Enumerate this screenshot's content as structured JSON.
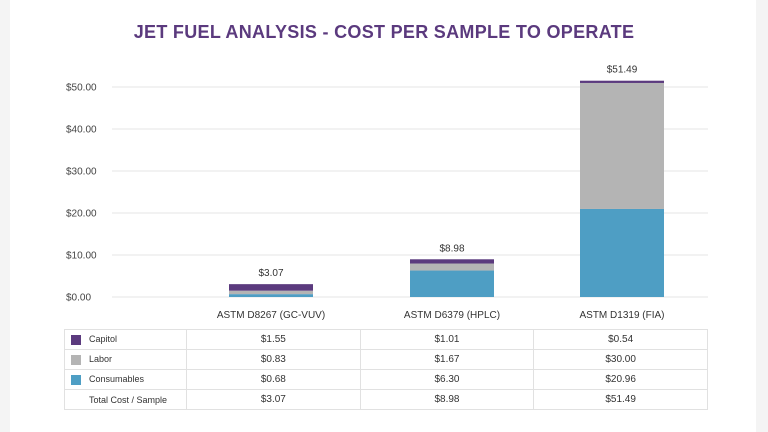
{
  "chart_data": {
    "type": "bar",
    "stacked": true,
    "title": "JET FUEL ANALYSIS - COST PER SAMPLE TO OPERATE",
    "categories": [
      "ASTM D8267 (GC-VUV)",
      "ASTM D6379 (HPLC)",
      "ASTM D1319 (FIA)"
    ],
    "series": [
      {
        "name": "Consumables",
        "values": [
          0.68,
          6.3,
          20.96
        ],
        "color": "#4e9ec4",
        "labels": [
          "$0.68",
          "$6.30",
          "$20.96"
        ]
      },
      {
        "name": "Labor",
        "values": [
          0.83,
          1.67,
          30.0
        ],
        "color": "#b4b4b4",
        "labels": [
          "$0.83",
          "$1.67",
          "$30.00"
        ]
      },
      {
        "name": "Capitol",
        "values": [
          1.55,
          1.01,
          0.54
        ],
        "color": "#5b3a7e",
        "labels": [
          "$1.55",
          "$1.01",
          "$0.54"
        ]
      }
    ],
    "totals": {
      "name": "Total Cost / Sample",
      "values": [
        3.07,
        8.98,
        51.49
      ],
      "labels": [
        "$3.07",
        "$8.98",
        "$51.49"
      ]
    },
    "ylim": [
      0,
      52
    ],
    "yticks": [
      0,
      10,
      20,
      30,
      40,
      50
    ],
    "ytick_labels": [
      "$0.00",
      "$10.00",
      "$20.00",
      "$30.00",
      "$40.00",
      "$50.00"
    ],
    "grid": true,
    "legend": "table-below"
  },
  "table_order": [
    "Capitol",
    "Labor",
    "Consumables"
  ]
}
